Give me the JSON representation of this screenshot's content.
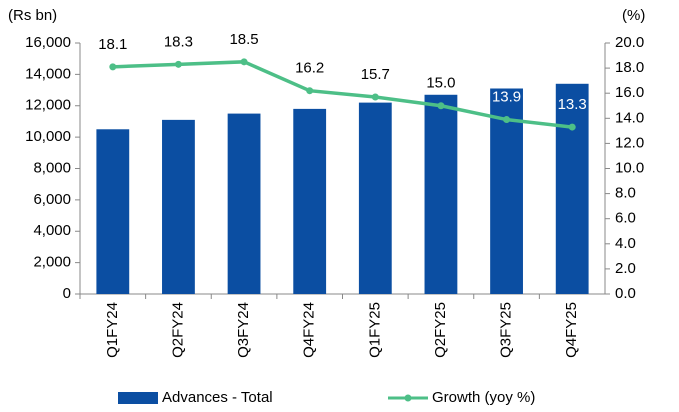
{
  "chart_data": {
    "type": "bar",
    "y_label": "(Rs bn)",
    "y2_label": "(%)",
    "categories": [
      "Q1FY24",
      "Q2FY24",
      "Q3FY24",
      "Q4FY24",
      "Q1FY25",
      "Q2FY25",
      "Q3FY25",
      "Q4FY25"
    ],
    "series": [
      {
        "name": "Advances - Total",
        "color": "#0b4ea2",
        "values": [
          10500,
          11100,
          11500,
          11800,
          12200,
          12700,
          13100,
          13400
        ]
      },
      {
        "name": "Growth (yoy %)",
        "color": "#4dbf87",
        "type": "line",
        "axis": "y2",
        "values": [
          18.1,
          18.3,
          18.5,
          16.2,
          15.7,
          15.0,
          13.9,
          13.3
        ],
        "value_labels": [
          "18.1",
          "18.3",
          "18.5",
          "16.2",
          "15.7",
          "15.0",
          "13.9",
          "13.3"
        ]
      }
    ],
    "ylim": [
      0,
      16000
    ],
    "yticks": [
      0,
      {
        "value": 2000,
        "label": "2,000"
      },
      {
        "value": 4000,
        "label": "4,000"
      },
      {
        "value": 6000,
        "label": "6,000"
      },
      {
        "value": 8000,
        "label": "8,000"
      },
      {
        "value": 10000,
        "label": "10,000"
      },
      {
        "value": 12000,
        "label": "12,000"
      },
      {
        "value": 14000,
        "label": "14,000"
      },
      {
        "value": 16000,
        "label": "16,000"
      }
    ],
    "y2lim": [
      0,
      20
    ],
    "y2ticks": [
      {
        "value": 0,
        "label": "0.0"
      },
      {
        "value": 2,
        "label": "2.0"
      },
      {
        "value": 4,
        "label": "4.0"
      },
      {
        "value": 6,
        "label": "6.0"
      },
      {
        "value": 8,
        "label": "8.0"
      },
      {
        "value": 10,
        "label": "10.0"
      },
      {
        "value": 12,
        "label": "12.0"
      },
      {
        "value": 14,
        "label": "14.0"
      },
      {
        "value": 16,
        "label": "16.0"
      },
      {
        "value": 18,
        "label": "18.0"
      },
      {
        "value": 20,
        "label": "20.0"
      }
    ],
    "legend": "bottom"
  }
}
